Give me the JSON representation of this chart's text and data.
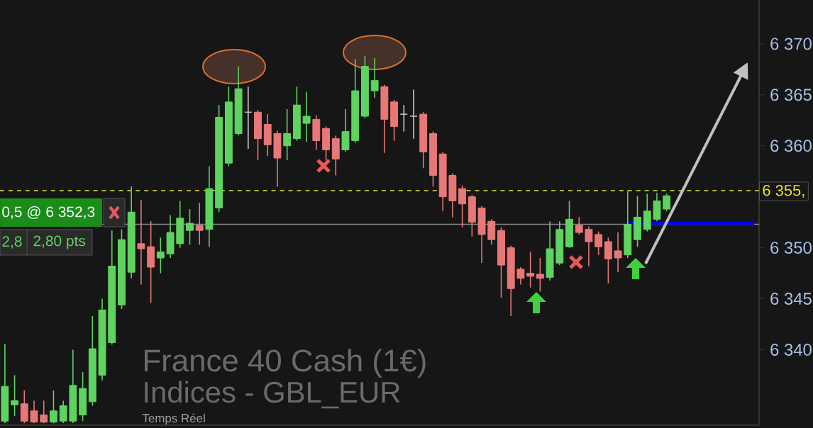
{
  "chart_data": {
    "type": "candlestick",
    "categories": [
      null,
      null,
      null,
      null,
      null,
      null,
      null,
      null,
      null,
      null,
      null,
      null,
      null,
      null,
      null,
      null,
      null,
      null,
      null,
      null,
      null,
      null,
      null,
      null,
      null,
      null,
      null,
      null,
      null,
      null,
      null,
      null,
      null,
      null,
      null,
      null,
      null,
      null,
      null,
      null,
      null,
      null,
      null,
      null,
      null,
      null,
      null,
      null,
      null,
      null,
      null,
      null,
      null,
      null,
      null,
      null,
      null,
      null,
      null,
      null,
      null,
      null,
      null,
      null,
      null,
      null,
      null,
      null,
      null,
      null,
      null,
      null,
      null,
      null,
      null,
      null,
      null,
      null
    ],
    "ohlc": [
      [
        6333,
        6340.6,
        6332.8,
        6336.4
      ],
      [
        6334.6,
        6337.5,
        6333.5,
        6335.0
      ],
      [
        6334.7,
        6336,
        6332.8,
        6333
      ],
      [
        6334,
        6335,
        6332.8,
        6332.9
      ],
      [
        6333.6,
        6335,
        6332.8,
        6332.9
      ],
      [
        6332.9,
        6336,
        6332.8,
        6334
      ],
      [
        6333,
        6335,
        6332.8,
        6334.5
      ],
      [
        6333,
        6340,
        6332.8,
        6336.5
      ],
      [
        6333.6,
        6337.8,
        6333,
        6336.2
      ],
      [
        6334.9,
        6343.3,
        6334.5,
        6340.1
      ],
      [
        6337.5,
        6345,
        6337,
        6343.9
      ],
      [
        6340.7,
        6351.7,
        6340.5,
        6348.2
      ],
      [
        6344.4,
        6351.8,
        6344,
        6350.8
      ],
      [
        6347.6,
        6356,
        6347,
        6353.5
      ],
      [
        6350.4,
        6354.7,
        6346.4,
        6349.9
      ],
      [
        6350.1,
        6352.6,
        6344.6,
        6348.1
      ],
      [
        6349.0,
        6351,
        6347.5,
        6349.6
      ],
      [
        6349.4,
        6353.2,
        6349,
        6351.5
      ],
      [
        6350.4,
        6354.6,
        6350,
        6352.9
      ],
      [
        6351.7,
        6353.8,
        6350.3,
        6352.4
      ],
      [
        6352.2,
        6354.4,
        6350.3,
        6351.7
      ],
      [
        6351.8,
        6358,
        6350.1,
        6355.8
      ],
      [
        6353.9,
        6364,
        6353.5,
        6362.8
      ],
      [
        6358.3,
        6365.8,
        6358,
        6364.3
      ],
      [
        6361.2,
        6367.8,
        6361,
        6365.6
      ],
      [
        6363.3,
        6365.8,
        6359.7,
        6363.3
      ],
      [
        6363.3,
        6363.5,
        6358.6,
        6360.7
      ],
      [
        6362.1,
        6363.1,
        6359,
        6360.1
      ],
      [
        6361.2,
        6361.5,
        6356,
        6358.8
      ],
      [
        6360,
        6363.6,
        6358.6,
        6361.2
      ],
      [
        6360.7,
        6365.8,
        6360.5,
        6364
      ],
      [
        6362.2,
        6365.3,
        6360.4,
        6362.9
      ],
      [
        6362.6,
        6363,
        6359.6,
        6360.5
      ],
      [
        6361.7,
        6361.9,
        6358.6,
        6359.6
      ],
      [
        6360.7,
        6361,
        6357.1,
        6358.7
      ],
      [
        6359.6,
        6363.6,
        6359.4,
        6361.4
      ],
      [
        6360.5,
        6368.5,
        6360.3,
        6365.4
      ],
      [
        6362.9,
        6368.8,
        6362.7,
        6367.8
      ],
      [
        6365.4,
        6368.6,
        6364.7,
        6366.4
      ],
      [
        6365.8,
        6366,
        6359.3,
        6362.6
      ],
      [
        6364.3,
        6364.5,
        6360.5,
        6361.9
      ],
      [
        6363.1,
        6364,
        6361.4,
        6363.1
      ],
      [
        6362.9,
        6365.5,
        6360.7,
        6362.9
      ],
      [
        6363.1,
        6363.3,
        6357.8,
        6359.4
      ],
      [
        6361.2,
        6361.4,
        6356,
        6357.1
      ],
      [
        6359.2,
        6359.4,
        6353.6,
        6355
      ],
      [
        6357.1,
        6357.3,
        6353,
        6354.6
      ],
      [
        6355.8,
        6356.1,
        6352,
        6354.3
      ],
      [
        6355,
        6355.2,
        6351.1,
        6352.5
      ],
      [
        6353.9,
        6354.1,
        6348.5,
        6351.3
      ],
      [
        6352.6,
        6352.8,
        6350.3,
        6350.8
      ],
      [
        6351.7,
        6352,
        6345.1,
        6348.3
      ],
      [
        6350,
        6350.2,
        6343.3,
        6346
      ],
      [
        6347.9,
        6348.1,
        6346.4,
        6347
      ],
      [
        6347.5,
        6349.6,
        6346.1,
        6347.2
      ],
      [
        6347.4,
        6349,
        6345.7,
        6347
      ],
      [
        6347.1,
        6352.6,
        6346.8,
        6349.9
      ],
      [
        6348.5,
        6352.6,
        6348.3,
        6351.8
      ],
      [
        6350.1,
        6354.6,
        6350,
        6352.8
      ],
      [
        6352.2,
        6353,
        6351.3,
        6351.5
      ],
      [
        6351.8,
        6352.1,
        6348.2,
        6350.6
      ],
      [
        6351.3,
        6351.6,
        6349.3,
        6350.1
      ],
      [
        6350.6,
        6351,
        6346.5,
        6348.9
      ],
      [
        6349.7,
        6351.5,
        6347.6,
        6349
      ],
      [
        6349.3,
        6355.6,
        6349,
        6352.3
      ],
      [
        6350.8,
        6355.1,
        6350.1,
        6353
      ],
      [
        6351.8,
        6355.3,
        6351.6,
        6353.6
      ],
      [
        6352.8,
        6355.4,
        6352.6,
        6354.6
      ],
      [
        6353.8,
        6355.3,
        6353.6,
        6355.1
      ],
      null,
      null,
      null,
      null,
      null,
      null,
      null,
      null,
      null
    ],
    "colors": [
      "#5fd35f",
      "#5fd35f",
      "#e87878",
      "#e87878",
      "#e87878",
      "#5fd35f",
      "#5fd35f",
      "#5fd35f",
      "#5fd35f",
      "#5fd35f",
      "#5fd35f",
      "#5fd35f",
      "#5fd35f",
      "#5fd35f",
      "#e87878",
      "#e87878",
      "#5fd35f",
      "#5fd35f",
      "#5fd35f",
      "#5fd35f",
      "#e87878",
      "#5fd35f",
      "#5fd35f",
      "#5fd35f",
      "#5fd35f",
      "#cccccc",
      "#e87878",
      "#e87878",
      "#e87878",
      "#5fd35f",
      "#5fd35f",
      "#5fd35f",
      "#e87878",
      "#e87878",
      "#e87878",
      "#5fd35f",
      "#5fd35f",
      "#5fd35f",
      "#5fd35f",
      "#e87878",
      "#e87878",
      "#cccccc",
      "#cccccc",
      "#e87878",
      "#e87878",
      "#e87878",
      "#e87878",
      "#e87878",
      "#e87878",
      "#e87878",
      "#e87878",
      "#e87878",
      "#e87878",
      "#e87878",
      "#e87878",
      "#e87878",
      "#5fd35f",
      "#5fd35f",
      "#5fd35f",
      "#e87878",
      "#e87878",
      "#e87878",
      "#e87878",
      "#e87878",
      "#5fd35f",
      "#5fd35f",
      "#5fd35f",
      "#5fd35f",
      "#5fd35f",
      null,
      null,
      null,
      null,
      null,
      null,
      null,
      null,
      null
    ],
    "series": [
      {
        "type": "line",
        "color": "#0000ff",
        "values": [
          null,
          null,
          null,
          null,
          null,
          null,
          null,
          null,
          null,
          null,
          null,
          null,
          null,
          null,
          null,
          null,
          null,
          null,
          null,
          null,
          null,
          null,
          null,
          null,
          null,
          null,
          null,
          null,
          null,
          null,
          null,
          null,
          null,
          null,
          null,
          null,
          null,
          null,
          null,
          null,
          null,
          null,
          null,
          null,
          null,
          null,
          null,
          null,
          null,
          null,
          null,
          null,
          null,
          null,
          null,
          null,
          null,
          null,
          null,
          null,
          null,
          null,
          null,
          null,
          6352.4,
          6352.4,
          6352.4,
          6352.4,
          6352.4,
          6352.4,
          6352.4,
          6352.4,
          6352.4,
          6352.4,
          6352.4,
          6352.4,
          6352.4,
          6352.4
        ]
      }
    ],
    "ylim": [
      6332.6,
      6374.3
    ],
    "yticks": [
      {
        "value": 6340,
        "label": "6 340"
      },
      {
        "value": 6345,
        "label": "6 345"
      },
      {
        "value": 6350,
        "label": "6 350"
      },
      {
        "value": 6360,
        "label": "6 360"
      },
      {
        "value": 6365,
        "label": "6 365"
      },
      {
        "value": 6370,
        "label": "6 370"
      }
    ],
    "ref_lines": [
      {
        "axis": "y",
        "value": 6352.3,
        "color": "#8a8a8a",
        "line_style": "solid"
      },
      {
        "axis": "y",
        "value": 6355.6,
        "color": "#e8e830",
        "line_style": "dashed"
      }
    ],
    "annotations": [
      "0,5 @ 6 352,3",
      "2,8",
      "2,80 pts",
      "France 40 Cash (1€)",
      "Indices - GBL_EUR",
      "Temps Réel",
      "6 355,"
    ],
    "tick_labels": "y",
    "grid": false
  }
}
